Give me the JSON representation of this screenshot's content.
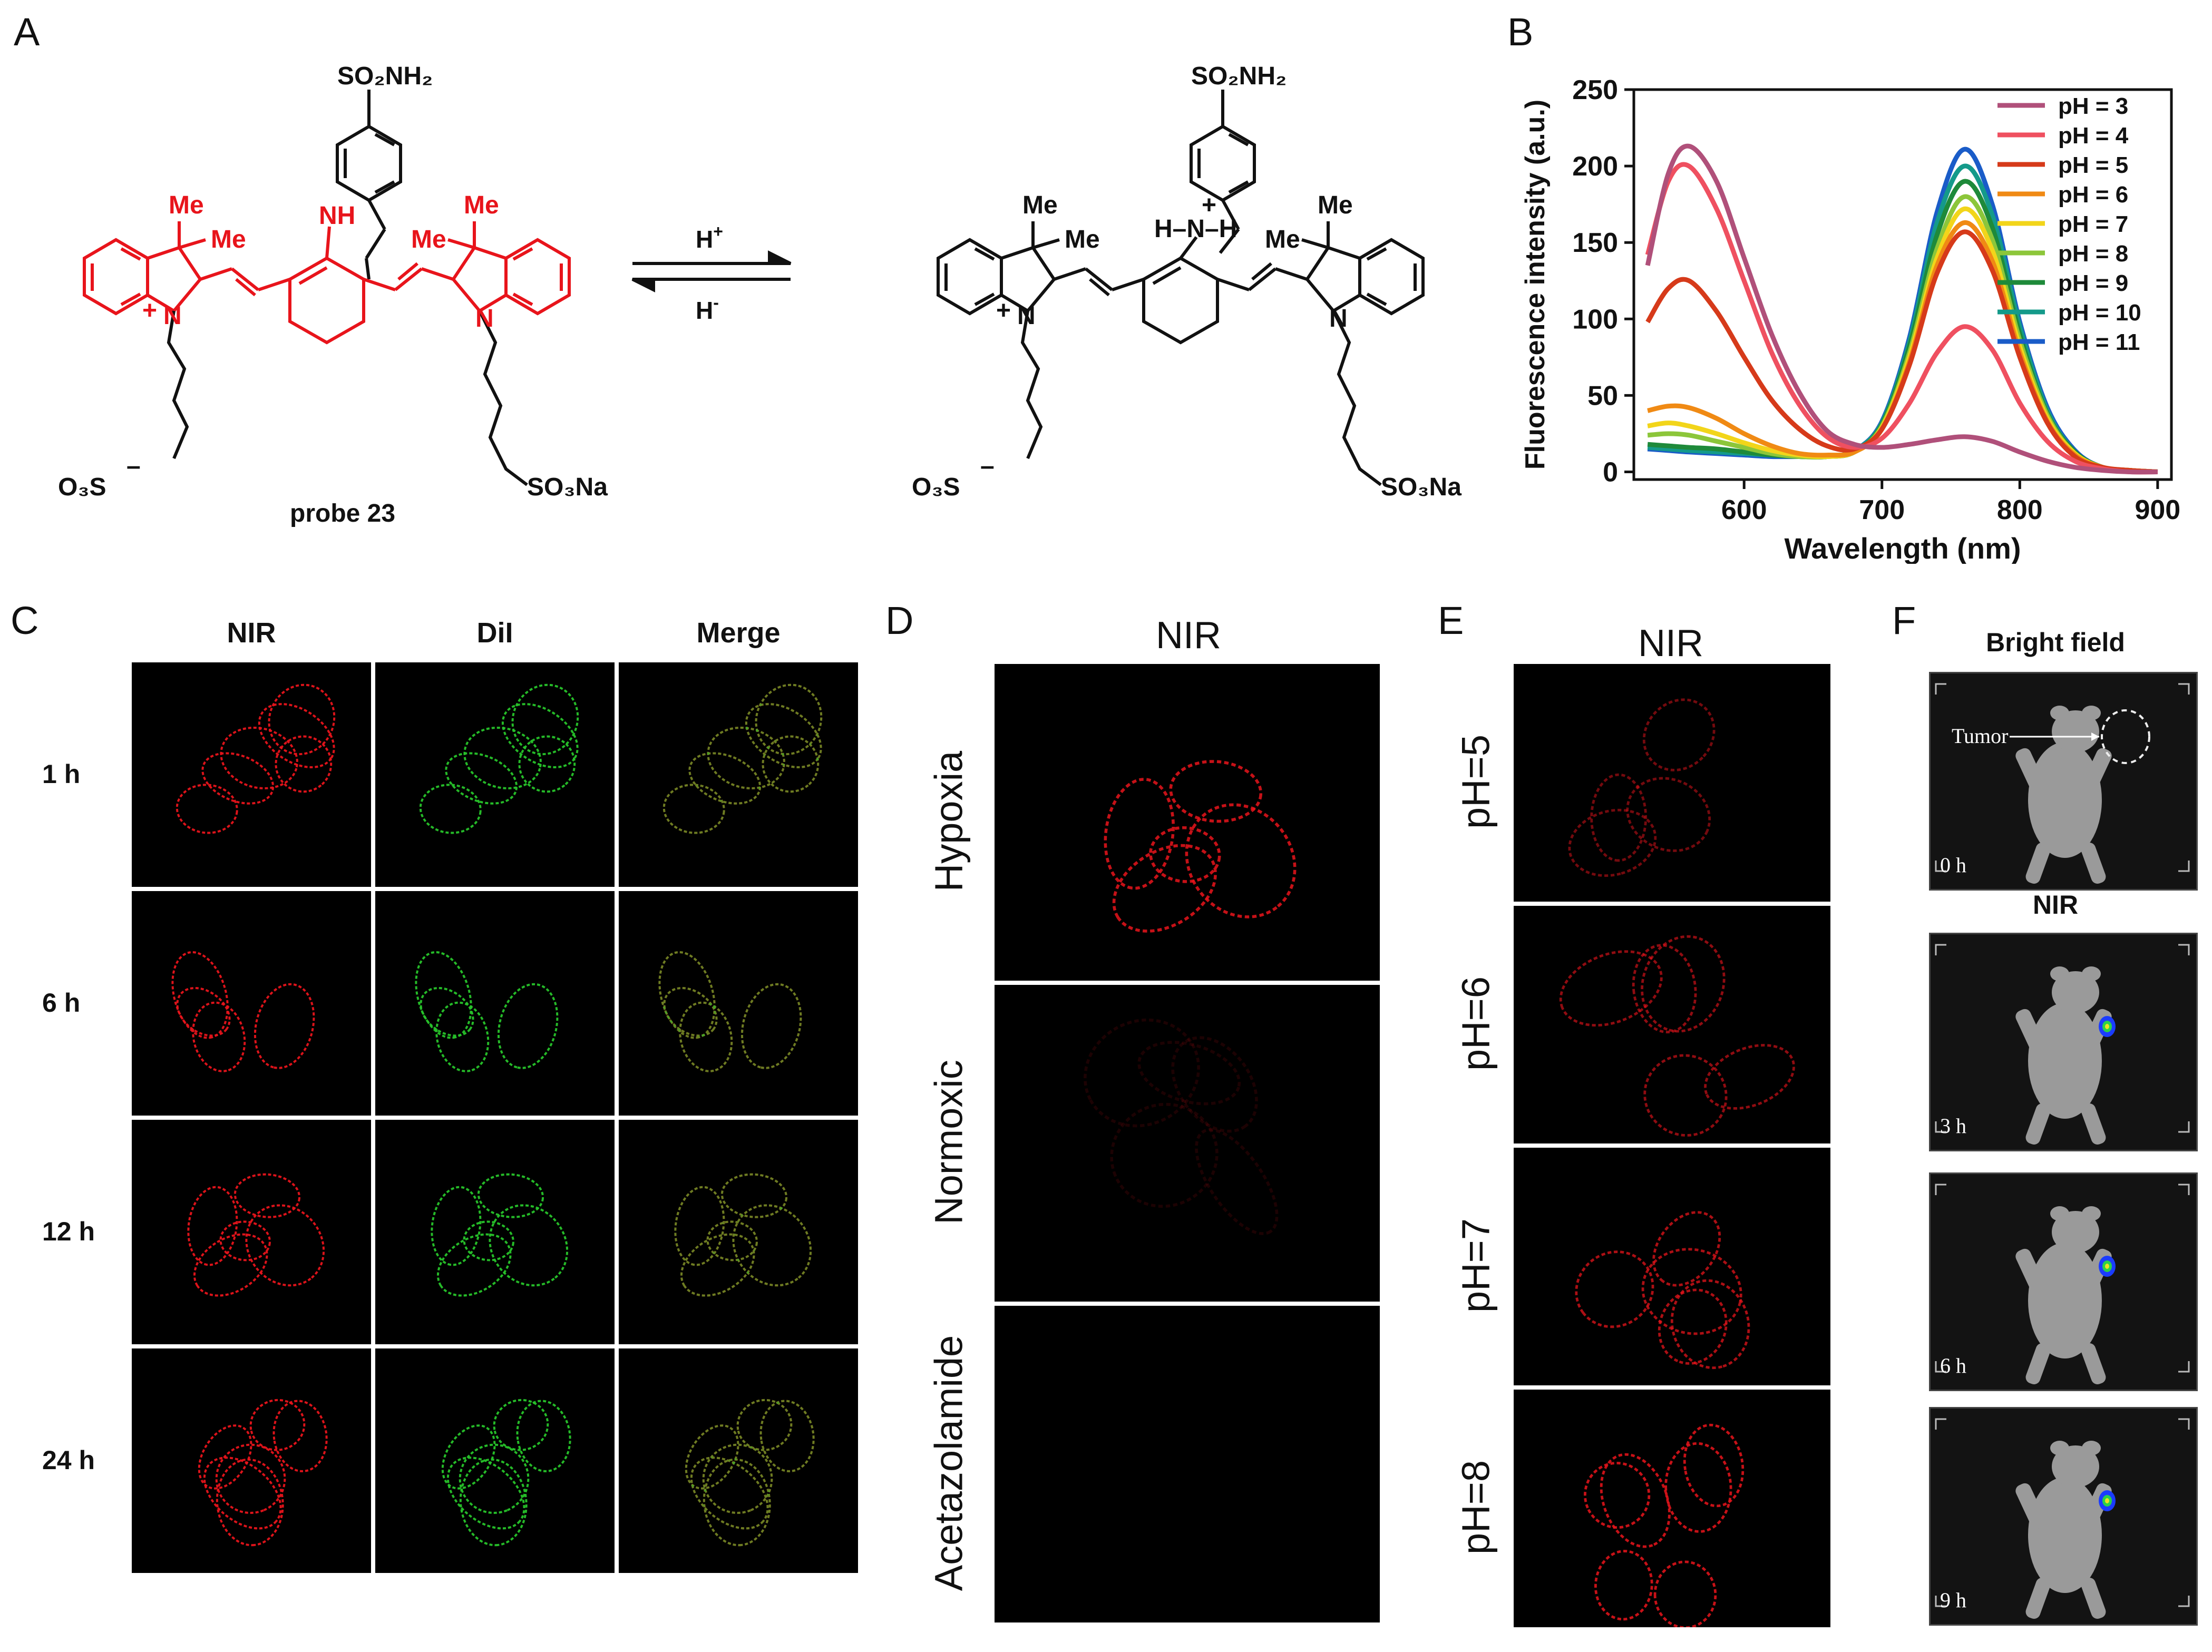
{
  "panels": {
    "A": {
      "letter": "A",
      "probe_label": "probe 23",
      "arrow_top": "H",
      "arrow_top_sup": "+",
      "arrow_bottom": "H",
      "arrow_bottom_sup": "-",
      "labels": {
        "so2nh2": "SO₂NH₂",
        "me": "Me",
        "nh": "NH",
        "n": "N",
        "plus": "+",
        "minus": "–",
        "o3s": "O₃S",
        "so3na": "SO₃Na",
        "hnh": "H–N–H"
      }
    },
    "B": {
      "letter": "B"
    },
    "C": {
      "letter": "C",
      "columns": [
        "NIR",
        "DiI",
        "Merge"
      ],
      "rows": [
        "1 h",
        "6 h",
        "12 h",
        "24 h"
      ]
    },
    "D": {
      "letter": "D",
      "header": "NIR",
      "rows": [
        "Hypoxia",
        "Normoxic",
        "Acetazolamide"
      ]
    },
    "E": {
      "letter": "E",
      "header": "NIR",
      "rows": [
        "pH=5",
        "pH=6",
        "pH=7",
        "pH=8"
      ]
    },
    "F": {
      "letter": "F",
      "bright_field": "Bright field",
      "nir": "NIR",
      "tumor_label": "Tumor",
      "times": [
        "0 h",
        "3 h",
        "6 h",
        "9 h"
      ]
    }
  },
  "colors": {
    "red_probe": "#e8141b",
    "green_dil": "#27c42a",
    "merge_yellow": "#d6c21a",
    "hotspot_blue": "#1a3cff"
  },
  "chart_data": {
    "type": "line",
    "xlabel": "Wavelength (nm)",
    "ylabel": "Fluorescence intensity (a.u.)",
    "xlim": [
      520,
      910
    ],
    "ylim": [
      -5,
      250
    ],
    "xticks": [
      600,
      700,
      800,
      900
    ],
    "yticks": [
      0,
      50,
      100,
      150,
      200,
      250
    ],
    "legend_position": "top-right",
    "grid": false,
    "series": [
      {
        "name": "pH = 3",
        "color": "#b0507a",
        "x": [
          530,
          545,
          560,
          580,
          600,
          620,
          640,
          660,
          680,
          700,
          720,
          740,
          760,
          780,
          800,
          820,
          840,
          860,
          880,
          900
        ],
        "values": [
          135,
          195,
          213,
          190,
          140,
          90,
          52,
          27,
          18,
          16,
          18,
          21,
          23,
          20,
          13,
          7,
          3,
          1,
          0,
          0
        ]
      },
      {
        "name": "pH = 4",
        "color": "#ef5060",
        "x": [
          530,
          545,
          560,
          580,
          600,
          620,
          640,
          660,
          680,
          700,
          720,
          740,
          760,
          780,
          800,
          820,
          840,
          860,
          880,
          900
        ],
        "values": [
          142,
          190,
          200,
          172,
          125,
          78,
          44,
          23,
          16,
          22,
          45,
          78,
          95,
          80,
          45,
          20,
          7,
          2,
          0,
          0
        ]
      },
      {
        "name": "pH = 5",
        "color": "#d63a1a",
        "x": [
          530,
          545,
          560,
          580,
          600,
          620,
          640,
          660,
          680,
          700,
          720,
          740,
          760,
          780,
          800,
          820,
          840,
          860,
          880,
          900
        ],
        "values": [
          98,
          120,
          125,
          105,
          75,
          47,
          28,
          17,
          15,
          28,
          70,
          130,
          157,
          132,
          75,
          32,
          10,
          3,
          1,
          0
        ]
      },
      {
        "name": "pH = 6",
        "color": "#f08a14",
        "x": [
          530,
          545,
          560,
          580,
          600,
          620,
          640,
          660,
          680,
          700,
          720,
          740,
          760,
          780,
          800,
          820,
          840,
          860,
          880,
          900
        ],
        "values": [
          40,
          43,
          42,
          35,
          25,
          17,
          12,
          11,
          13,
          28,
          72,
          135,
          163,
          138,
          78,
          33,
          11,
          3,
          1,
          0
        ]
      },
      {
        "name": "pH = 7",
        "color": "#f2d51a",
        "x": [
          530,
          545,
          560,
          580,
          600,
          620,
          640,
          660,
          680,
          700,
          720,
          740,
          760,
          780,
          800,
          820,
          840,
          860,
          880,
          900
        ],
        "values": [
          30,
          32,
          30,
          25,
          19,
          14,
          11,
          10,
          13,
          29,
          75,
          140,
          172,
          145,
          82,
          35,
          12,
          3,
          1,
          0
        ]
      },
      {
        "name": "pH = 8",
        "color": "#8cc63a",
        "x": [
          530,
          545,
          560,
          580,
          600,
          620,
          640,
          660,
          680,
          700,
          720,
          740,
          760,
          780,
          800,
          820,
          840,
          860,
          880,
          900
        ],
        "values": [
          24,
          25,
          24,
          20,
          16,
          12,
          10,
          10,
          13,
          30,
          78,
          146,
          180,
          152,
          86,
          37,
          12,
          3,
          1,
          0
        ]
      },
      {
        "name": "pH = 9",
        "color": "#1e8a3a",
        "x": [
          530,
          545,
          560,
          580,
          600,
          620,
          640,
          660,
          680,
          700,
          720,
          740,
          760,
          780,
          800,
          820,
          840,
          860,
          880,
          900
        ],
        "values": [
          18,
          17,
          16,
          15,
          13,
          11,
          10,
          10,
          13,
          31,
          82,
          155,
          190,
          160,
          90,
          38,
          13,
          3,
          1,
          0
        ]
      },
      {
        "name": "pH = 10",
        "color": "#149a8a",
        "x": [
          530,
          545,
          560,
          580,
          600,
          620,
          640,
          660,
          680,
          700,
          720,
          740,
          760,
          780,
          800,
          820,
          840,
          860,
          880,
          900
        ],
        "values": [
          16,
          15,
          14,
          13,
          12,
          11,
          10,
          10,
          14,
          32,
          85,
          163,
          200,
          168,
          95,
          40,
          13,
          3,
          1,
          0
        ]
      },
      {
        "name": "pH = 11",
        "color": "#1a5cc8",
        "x": [
          530,
          545,
          560,
          580,
          600,
          620,
          640,
          660,
          680,
          700,
          720,
          740,
          760,
          780,
          800,
          820,
          840,
          860,
          880,
          900
        ],
        "values": [
          15,
          14,
          13,
          12,
          11,
          10,
          10,
          10,
          14,
          33,
          88,
          170,
          211,
          175,
          98,
          42,
          14,
          3,
          1,
          0
        ]
      }
    ]
  }
}
